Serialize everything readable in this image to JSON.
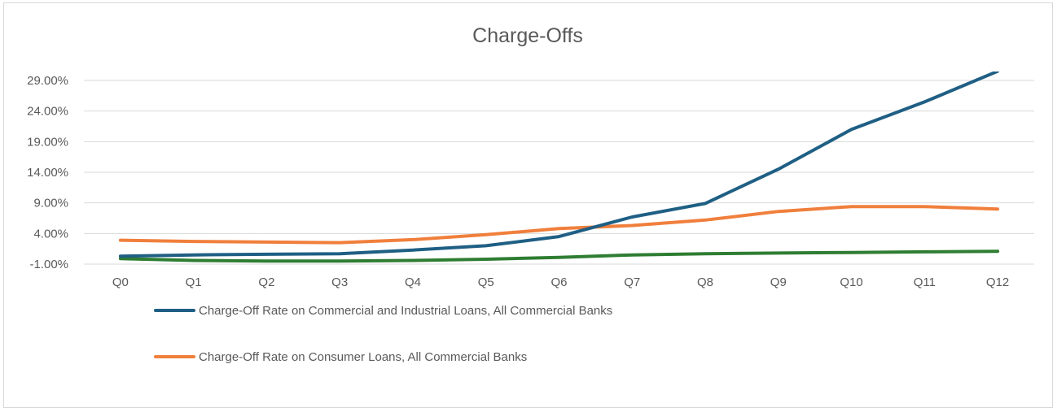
{
  "chart_data": {
    "type": "line",
    "title": "Charge-Offs",
    "xlabel": "",
    "ylabel": "",
    "categories": [
      "Q0",
      "Q1",
      "Q2",
      "Q3",
      "Q4",
      "Q5",
      "Q6",
      "Q7",
      "Q8",
      "Q9",
      "Q10",
      "Q11",
      "Q12"
    ],
    "y_ticks": [
      "29.00%",
      "24.00%",
      "19.00%",
      "14.00%",
      "9.00%",
      "4.00%",
      "-1.00%"
    ],
    "y_tick_values": [
      29,
      24,
      19,
      14,
      9,
      4,
      -1
    ],
    "ylim": [
      -1,
      29
    ],
    "grid": true,
    "legend_position": "bottom-left",
    "series": [
      {
        "name": "Charge-Off Rate on Commercial and Industrial Loans, All Commercial Banks",
        "color": "#1f5f84",
        "values": [
          0.3,
          0.5,
          0.6,
          0.7,
          1.3,
          2.0,
          3.5,
          6.7,
          8.9,
          14.5,
          21.0,
          25.5,
          30.5
        ],
        "in_legend": true
      },
      {
        "name": "Charge-Off Rate on Consumer Loans, All Commercial Banks",
        "color": "#f07f3c",
        "values": [
          2.9,
          2.7,
          2.6,
          2.5,
          3.0,
          3.8,
          4.8,
          5.3,
          6.2,
          7.6,
          8.4,
          8.4,
          8.0
        ],
        "in_legend": true
      },
      {
        "name": "",
        "color": "#2e7d32",
        "values": [
          -0.1,
          -0.4,
          -0.5,
          -0.5,
          -0.4,
          -0.2,
          0.1,
          0.5,
          0.7,
          0.8,
          0.9,
          1.0,
          1.1
        ],
        "in_legend": false
      }
    ]
  }
}
